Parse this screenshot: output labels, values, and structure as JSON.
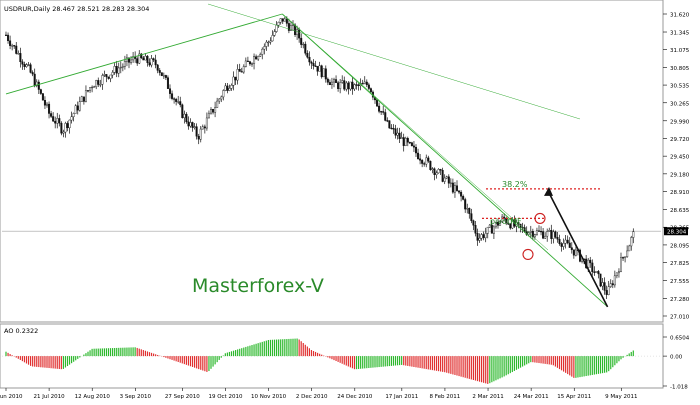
{
  "chart_data": [
    {
      "type": "candlestick",
      "header": "USDRUR,Daily  28.467 28.521 28.283 28.304",
      "symbol": "USDRUR",
      "timeframe": "Daily",
      "ohlc_last": {
        "open": 28.467,
        "high": 28.521,
        "low": 28.283,
        "close": 28.304
      },
      "current_price_label": "28.304",
      "y_ticks": [
        "31.620",
        "31.345",
        "31.075",
        "30.805",
        "30.535",
        "30.265",
        "29.990",
        "29.720",
        "29.450",
        "29.180",
        "28.910",
        "28.635",
        "28.365",
        "28.095",
        "27.825",
        "27.555",
        "27.280",
        "27.010"
      ],
      "ylim": [
        27.01,
        31.62
      ],
      "x_ticks": [
        "29 Jun 2010",
        "21 Jul 2010",
        "12 Aug 2010",
        "3 Sep 2010",
        "27 Sep 2010",
        "19 Oct 2010",
        "10 Nov 2010",
        "2 Dec 2010",
        "24 Dec 2010",
        "17 Jan 2011",
        "8 Feb 2011",
        "2 Mar 2011",
        "24 Mar 2011",
        "15 Apr 2011",
        "9 May 2011"
      ],
      "approx_close_path": [
        {
          "x": "29 Jun 2010",
          "y": 31.3
        },
        {
          "x": "12 Jul 2010",
          "y": 30.7
        },
        {
          "x": "21 Jul 2010",
          "y": 30.1
        },
        {
          "x": "28 Jul 2010",
          "y": 29.85
        },
        {
          "x": "12 Aug 2010",
          "y": 30.55
        },
        {
          "x": "3 Sep 2010",
          "y": 30.95
        },
        {
          "x": "14 Sep 2010",
          "y": 30.85
        },
        {
          "x": "27 Sep 2010",
          "y": 30.1
        },
        {
          "x": "5 Oct 2010",
          "y": 29.75
        },
        {
          "x": "19 Oct 2010",
          "y": 30.5
        },
        {
          "x": "10 Nov 2010",
          "y": 31.2
        },
        {
          "x": "17 Nov 2010",
          "y": 31.55
        },
        {
          "x": "25 Nov 2010",
          "y": 31.3
        },
        {
          "x": "2 Dec 2010",
          "y": 30.9
        },
        {
          "x": "13 Dec 2010",
          "y": 30.55
        },
        {
          "x": "24 Dec 2010",
          "y": 30.5
        },
        {
          "x": "31 Dec 2010",
          "y": 30.55
        },
        {
          "x": "10 Jan 2011",
          "y": 29.9
        },
        {
          "x": "17 Jan 2011",
          "y": 29.7
        },
        {
          "x": "28 Jan 2011",
          "y": 29.4
        },
        {
          "x": "8 Feb 2011",
          "y": 29.1
        },
        {
          "x": "17 Feb 2011",
          "y": 28.8
        },
        {
          "x": "25 Feb 2011",
          "y": 28.2
        },
        {
          "x": "2 Mar 2011",
          "y": 28.3
        },
        {
          "x": "10 Mar 2011",
          "y": 28.5
        },
        {
          "x": "17 Mar 2011",
          "y": 28.35
        },
        {
          "x": "24 Mar 2011",
          "y": 28.3
        },
        {
          "x": "4 Apr 2011",
          "y": 28.25
        },
        {
          "x": "15 Apr 2011",
          "y": 28.0
        },
        {
          "x": "25 Apr 2011",
          "y": 27.7
        },
        {
          "x": "2 May 2011",
          "y": 27.35
        },
        {
          "x": "9 May 2011",
          "y": 27.85
        },
        {
          "x": "16 May 2011",
          "y": 28.304
        }
      ],
      "annotations": [
        "38.2%",
        "pivotMF",
        "Masterforex-V"
      ],
      "lines": {
        "trend": "#33aa33",
        "fib_level": "#dd2222",
        "arrow": "#111111",
        "circle_marker": "#cc2222"
      },
      "colors": {
        "candle": "#111111",
        "grid_line": "#a0a0a0",
        "watermark": "#2a8a2a"
      }
    },
    {
      "type": "bar",
      "label": "AO 0.2322",
      "indicator": "AO",
      "last_value": 0.2322,
      "y_ticks": [
        "0.6504",
        "0.00",
        "-1.018"
      ],
      "ylim": [
        -1.018,
        0.6504
      ],
      "approx_values": [
        {
          "x": "29 Jun 2010",
          "y": 0.15
        },
        {
          "x": "12 Jul 2010",
          "y": -0.35
        },
        {
          "x": "28 Jul 2010",
          "y": -0.45
        },
        {
          "x": "12 Aug 2010",
          "y": 0.25
        },
        {
          "x": "3 Sep 2010",
          "y": 0.3
        },
        {
          "x": "27 Sep 2010",
          "y": -0.25
        },
        {
          "x": "10 Oct 2010",
          "y": -0.55
        },
        {
          "x": "19 Oct 2010",
          "y": 0.1
        },
        {
          "x": "10 Nov 2010",
          "y": 0.55
        },
        {
          "x": "25 Nov 2010",
          "y": 0.6
        },
        {
          "x": "2 Dec 2010",
          "y": 0.2
        },
        {
          "x": "24 Dec 2010",
          "y": -0.45
        },
        {
          "x": "17 Jan 2011",
          "y": -0.3
        },
        {
          "x": "8 Feb 2011",
          "y": -0.55
        },
        {
          "x": "2 Mar 2011",
          "y": -0.95
        },
        {
          "x": "10 Mar 2011",
          "y": -0.7
        },
        {
          "x": "24 Mar 2011",
          "y": -0.2
        },
        {
          "x": "4 Apr 2011",
          "y": -0.3
        },
        {
          "x": "15 Apr 2011",
          "y": -0.75
        },
        {
          "x": "2 May 2011",
          "y": -0.55
        },
        {
          "x": "9 May 2011",
          "y": -0.1
        },
        {
          "x": "16 May 2011",
          "y": 0.2322
        }
      ],
      "colors": {
        "up": "#2db82d",
        "down": "#e03030"
      }
    }
  ]
}
